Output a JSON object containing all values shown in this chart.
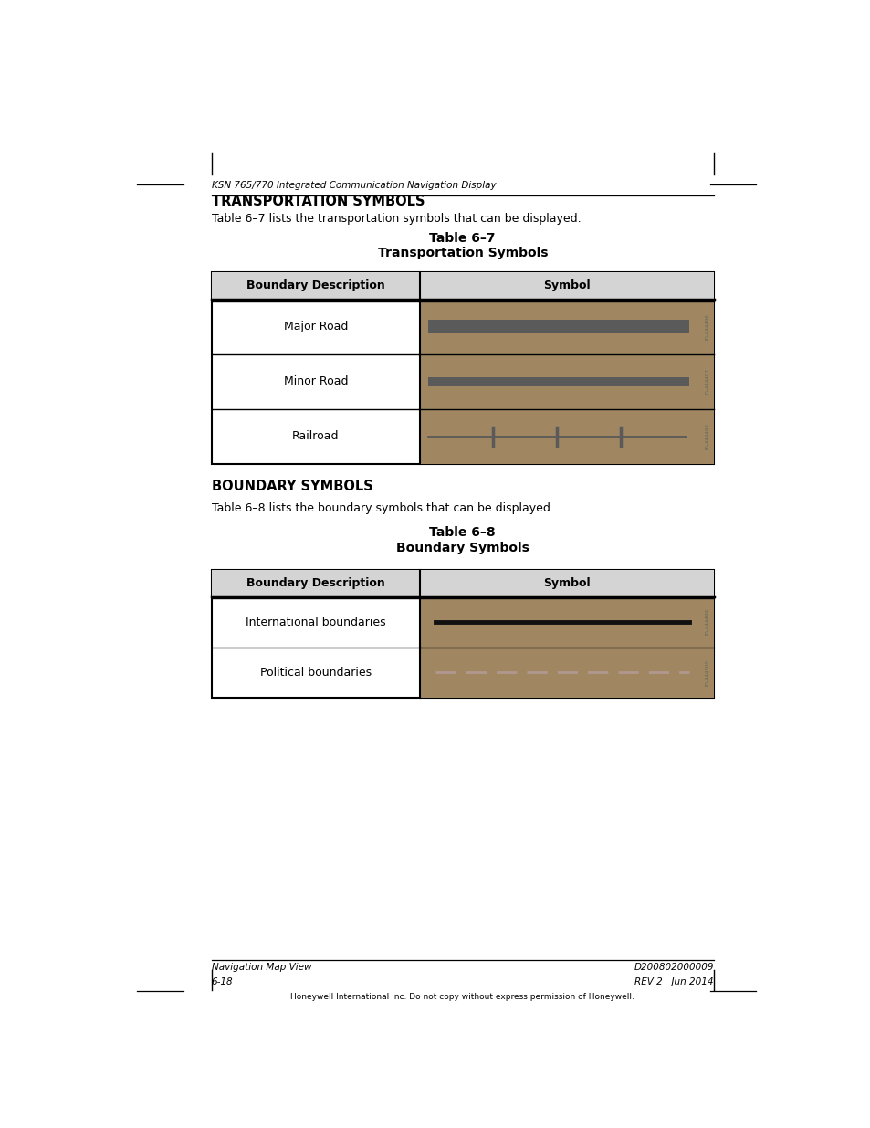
{
  "page_width": 9.54,
  "page_height": 12.35,
  "bg_color": "#ffffff",
  "header_italic": "KSN 765/770 Integrated Communication Navigation Display",
  "section1_title": "TRANSPORTATION SYMBOLS",
  "section1_intro": "Table 6–7 lists the transportation symbols that can be displayed.",
  "table1_title_line1": "Table 6–7",
  "table1_title_line2": "Transportation Symbols",
  "table1_col1_header": "Boundary Description",
  "table1_col2_header": "Symbol",
  "table1_rows": [
    {
      "desc": "Major Road",
      "symbol_type": "major_road",
      "id_text": "ID-444496"
    },
    {
      "desc": "Minor Road",
      "symbol_type": "minor_road",
      "id_text": "ID-444497"
    },
    {
      "desc": "Railroad",
      "symbol_type": "railroad",
      "id_text": "ID-444498"
    }
  ],
  "section2_title": "BOUNDARY SYMBOLS",
  "section2_intro": "Table 6–8 lists the boundary symbols that can be displayed.",
  "table2_title_line1": "Table 6–8",
  "table2_title_line2": "Boundary Symbols",
  "table2_col1_header": "Boundary Description",
  "table2_col2_header": "Symbol",
  "table2_rows": [
    {
      "desc": "International boundaries",
      "symbol_type": "international",
      "id_text": "ID-444499"
    },
    {
      "desc": "Political boundaries",
      "symbol_type": "political",
      "id_text": "ID-444500"
    }
  ],
  "footer_left_line1": "Navigation Map View",
  "footer_left_line2": "6-18",
  "footer_right_line1": "D200802000009",
  "footer_right_line2": "REV 2   Jun 2014",
  "footer_center": "Honeywell International Inc. Do not copy without express permission of Honeywell.",
  "tan_bg": "#a08762",
  "road_color": "#5a5a5a",
  "railroad_color": "#5a5a5a",
  "intl_boundary_color": "#111111",
  "political_boundary_color": "#b09890",
  "id_text_color": "#666655",
  "header_bg_color": "#d4d4d4"
}
